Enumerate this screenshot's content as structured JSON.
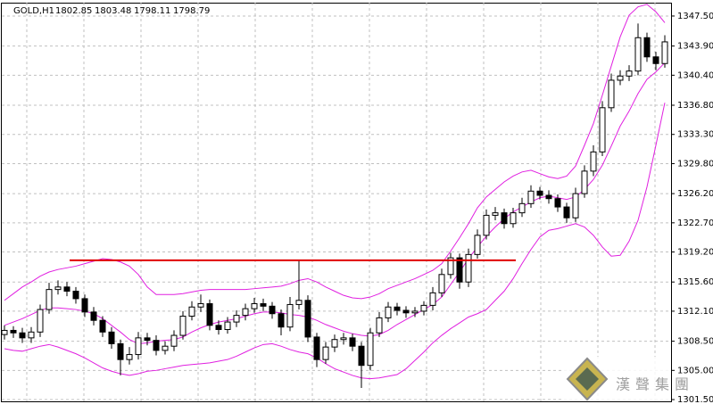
{
  "chart_data": {
    "type": "candlestick",
    "header": {
      "symbol": "GOLD,H1",
      "ohlc": [
        1802.85,
        1803.48,
        1798.11,
        1798.79
      ]
    },
    "watermark": "漢聲集團",
    "ylim": [
      1301.29,
      1349.1
    ],
    "yticks": [
      {
        "value": 1347.5,
        "label": "1347.50"
      },
      {
        "value": 1343.9,
        "label": "1343.90"
      },
      {
        "value": 1340.4,
        "label": "1340.40"
      },
      {
        "value": 1336.8,
        "label": "1336.80"
      },
      {
        "value": 1333.3,
        "label": "1333.30"
      },
      {
        "value": 1329.8,
        "label": "1329.80"
      },
      {
        "value": 1326.2,
        "label": "1326.20"
      },
      {
        "value": 1322.7,
        "label": "1322.70"
      },
      {
        "value": 1319.2,
        "label": "1319.20"
      },
      {
        "value": 1315.6,
        "label": "1315.60"
      },
      {
        "value": 1312.1,
        "label": "1312.10"
      },
      {
        "value": 1308.5,
        "label": "1308.50"
      },
      {
        "value": 1305,
        "label": "1305.00"
      },
      {
        "value": 1301.5,
        "label": "1301.50"
      }
    ],
    "grid": true,
    "candle_up_color": "#ffffff",
    "candle_down_color": "#000000",
    "open": [
      1309.3,
      1309.8,
      1309.5,
      1308.9,
      1309.6,
      1312.3,
      1314.7,
      1315.0,
      1314.5,
      1313.6,
      1312.0,
      1311.0,
      1309.6,
      1308.2,
      1306.3,
      1306.9,
      1308.9,
      1308.6,
      1307.4,
      1307.9,
      1309.2,
      1311.5,
      1312.6,
      1313.0,
      1310.4,
      1309.9,
      1310.8,
      1311.6,
      1312.4,
      1313.0,
      1312.7,
      1311.8,
      1310.2,
      1312.9,
      1313.4,
      1309.0,
      1306.3,
      1307.8,
      1308.7,
      1308.9,
      1307.9,
      1305.6,
      1309.5,
      1311.3,
      1312.6,
      1312.2,
      1311.9,
      1312.1,
      1312.8,
      1314.3,
      1316.5,
      1318.5,
      1315.6,
      1318.9,
      1321.2,
      1323.6,
      1323.9,
      1322.6,
      1323.9,
      1325.0,
      1326.5,
      1326.0,
      1325.6,
      1324.6,
      1323.3,
      1326.2,
      1328.9,
      1331.2,
      1336.5,
      1339.8,
      1340.3,
      1340.9,
      1344.9,
      1342.6,
      1341.8
    ],
    "high": [
      1310.4,
      1310.3,
      1310.1,
      1310.2,
      1312.9,
      1315.5,
      1315.8,
      1315.6,
      1315.0,
      1314.1,
      1312.6,
      1311.5,
      1310.2,
      1308.7,
      1307.8,
      1309.6,
      1309.5,
      1309.2,
      1308.5,
      1309.8,
      1312.1,
      1313.3,
      1314.1,
      1313.5,
      1311.0,
      1311.4,
      1312.2,
      1313.0,
      1313.7,
      1313.6,
      1313.2,
      1312.3,
      1313.8,
      1318.2,
      1314.0,
      1309.5,
      1308.4,
      1309.3,
      1309.5,
      1309.4,
      1308.4,
      1310.1,
      1312.0,
      1313.2,
      1313.1,
      1312.7,
      1312.6,
      1313.3,
      1315.0,
      1317.2,
      1319.1,
      1319.0,
      1319.6,
      1321.9,
      1324.3,
      1324.6,
      1324.4,
      1324.5,
      1325.7,
      1327.2,
      1327.0,
      1326.6,
      1326.1,
      1325.1,
      1326.9,
      1329.6,
      1332.0,
      1337.3,
      1340.6,
      1341.0,
      1341.6,
      1346.6,
      1345.5,
      1343.2,
      1345.2
    ],
    "low": [
      1308.7,
      1308.9,
      1308.3,
      1308.3,
      1309.0,
      1311.8,
      1314.1,
      1313.9,
      1313.0,
      1311.4,
      1310.4,
      1309.0,
      1307.6,
      1304.4,
      1305.7,
      1306.3,
      1308.0,
      1306.8,
      1306.9,
      1307.3,
      1308.7,
      1311.0,
      1312.0,
      1309.8,
      1309.3,
      1309.4,
      1310.2,
      1311.0,
      1311.9,
      1312.1,
      1311.2,
      1309.2,
      1309.7,
      1312.3,
      1308.4,
      1305.4,
      1305.8,
      1307.2,
      1308.1,
      1307.3,
      1302.9,
      1305.0,
      1309.0,
      1310.8,
      1311.6,
      1311.3,
      1311.4,
      1311.6,
      1312.2,
      1313.8,
      1316.0,
      1314.8,
      1315.0,
      1318.4,
      1320.7,
      1323.0,
      1322.0,
      1322.1,
      1323.4,
      1324.5,
      1325.5,
      1325.0,
      1324.0,
      1322.7,
      1322.8,
      1325.7,
      1328.3,
      1330.7,
      1336.0,
      1339.2,
      1339.7,
      1340.4,
      1342.0,
      1341.0,
      1341.3
    ],
    "close": [
      1309.8,
      1309.5,
      1308.9,
      1309.6,
      1312.3,
      1314.7,
      1315.0,
      1314.5,
      1313.6,
      1312.0,
      1311.0,
      1309.6,
      1308.2,
      1306.3,
      1306.9,
      1308.9,
      1308.6,
      1307.4,
      1307.9,
      1309.2,
      1311.5,
      1312.6,
      1313.0,
      1310.4,
      1309.9,
      1310.8,
      1311.6,
      1312.4,
      1313.0,
      1312.7,
      1311.8,
      1310.2,
      1312.9,
      1313.4,
      1309.0,
      1306.3,
      1307.8,
      1308.7,
      1308.9,
      1307.9,
      1305.6,
      1309.5,
      1311.3,
      1312.6,
      1312.2,
      1311.9,
      1312.1,
      1312.8,
      1314.3,
      1316.5,
      1318.5,
      1315.6,
      1318.9,
      1321.2,
      1323.6,
      1323.9,
      1322.6,
      1323.9,
      1325.0,
      1326.5,
      1326.0,
      1325.6,
      1324.6,
      1323.3,
      1326.2,
      1328.9,
      1331.2,
      1336.5,
      1339.8,
      1340.3,
      1340.9,
      1344.9,
      1342.6,
      1341.8,
      1344.4
    ],
    "bands_color": "#e020e0",
    "bands": [
      {
        "values": [
          1313.4,
          1314.2,
          1315.0,
          1315.6,
          1316.3,
          1316.8,
          1317.1,
          1317.3,
          1317.5,
          1317.8,
          1318.1,
          1318.4,
          1318.3,
          1318.0,
          1317.5,
          1316.5,
          1315.0,
          1314.1,
          1314.1,
          1314.1,
          1314.2,
          1314.4,
          1314.6,
          1314.7,
          1314.7,
          1314.7,
          1314.7,
          1314.7,
          1314.8,
          1314.9,
          1315.0,
          1315.1,
          1315.4,
          1315.8,
          1316.0,
          1315.6,
          1315.0,
          1314.5,
          1314.0,
          1313.7,
          1313.6,
          1313.8,
          1314.2,
          1314.8,
          1315.2,
          1315.6,
          1316.0,
          1316.5,
          1317.0,
          1317.8,
          1319.3,
          1320.9,
          1322.6,
          1324.5,
          1325.8,
          1326.7,
          1327.6,
          1328.3,
          1328.8,
          1329.0,
          1328.6,
          1328.2,
          1328.0,
          1328.3,
          1329.5,
          1332.0,
          1334.6,
          1338.0,
          1341.5,
          1345.0,
          1347.6,
          1348.6,
          1348.9,
          1348.0,
          1346.7
        ]
      },
      {
        "values": [
          1310.4,
          1310.8,
          1311.2,
          1311.7,
          1312.2,
          1312.5,
          1312.5,
          1312.4,
          1312.3,
          1312.1,
          1311.8,
          1311.2,
          1310.4,
          1309.6,
          1308.7,
          1308.2,
          1308.3,
          1308.5,
          1308.6,
          1308.7,
          1309.0,
          1309.6,
          1310.1,
          1310.5,
          1310.8,
          1311.0,
          1311.2,
          1311.5,
          1311.8,
          1312.0,
          1312.0,
          1311.9,
          1311.7,
          1311.6,
          1311.4,
          1311.0,
          1310.5,
          1310.1,
          1309.7,
          1309.4,
          1309.2,
          1309.1,
          1309.3,
          1309.8,
          1310.5,
          1311.1,
          1311.7,
          1312.3,
          1312.9,
          1313.8,
          1315.3,
          1316.8,
          1318.4,
          1319.8,
          1321.1,
          1322.2,
          1323.2,
          1324.0,
          1324.6,
          1325.2,
          1325.7,
          1325.9,
          1325.7,
          1325.5,
          1325.8,
          1326.7,
          1327.9,
          1329.6,
          1331.9,
          1334.3,
          1336.1,
          1338.2,
          1339.9,
          1340.8,
          1341.9
        ]
      },
      {
        "values": [
          1307.6,
          1307.4,
          1307.3,
          1307.6,
          1307.9,
          1308.1,
          1307.8,
          1307.4,
          1307.0,
          1306.5,
          1305.9,
          1305.3,
          1304.9,
          1304.6,
          1304.4,
          1304.6,
          1304.9,
          1305.0,
          1305.2,
          1305.4,
          1305.6,
          1305.7,
          1305.8,
          1305.9,
          1306.1,
          1306.3,
          1306.7,
          1307.2,
          1307.7,
          1308.1,
          1308.2,
          1307.9,
          1307.5,
          1307.2,
          1307.0,
          1306.5,
          1305.8,
          1305.2,
          1304.8,
          1304.4,
          1304.1,
          1304.0,
          1304.1,
          1304.3,
          1304.5,
          1305.2,
          1306.2,
          1307.2,
          1308.3,
          1309.2,
          1310.0,
          1310.7,
          1311.4,
          1311.8,
          1312.3,
          1313.4,
          1314.5,
          1316.0,
          1317.8,
          1319.5,
          1321.0,
          1321.8,
          1322.0,
          1322.3,
          1322.6,
          1322.2,
          1321.2,
          1319.8,
          1318.7,
          1318.8,
          1320.5,
          1323.0,
          1327.0,
          1332.0,
          1337.1
        ]
      }
    ],
    "hline": {
      "value": 1318.2,
      "color": "#e00000"
    }
  }
}
